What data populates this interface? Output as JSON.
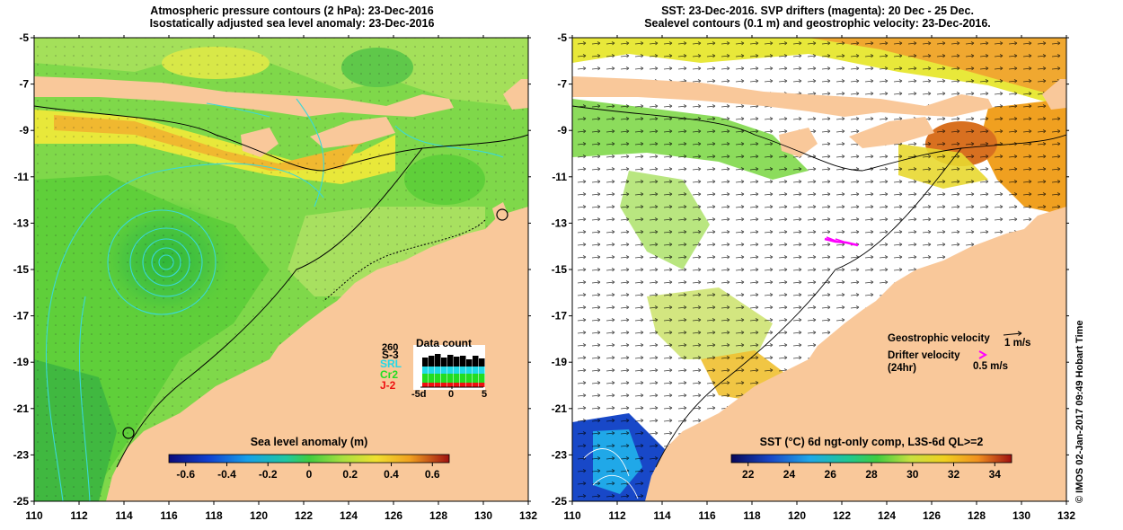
{
  "left_panel": {
    "title_line1": "Atmospheric pressure contours (2 hPa): 23-Dec-2016",
    "title_line2": "Isostatically adjusted sea level anomaly: 23-Dec-2016",
    "colorbar": {
      "label": "Sea level anomaly (m)",
      "ticks": [
        "-0.6",
        "-0.4",
        "-0.2",
        "0",
        "0.2",
        "0.4",
        "0.6"
      ]
    },
    "data_count": {
      "title": "Data count",
      "max_label": "260",
      "missions": [
        {
          "name": "S-3",
          "color": "#000000"
        },
        {
          "name": "SRL",
          "color": "#22d8e8"
        },
        {
          "name": "Cr2",
          "color": "#22dd22"
        },
        {
          "name": "J-2",
          "color": "#ee1111"
        }
      ],
      "ticks": [
        "-5d",
        "0",
        "5"
      ]
    }
  },
  "right_panel": {
    "title_line1": "SST: 23-Dec-2016. SVP drifters (magenta): 20 Dec - 25 Dec.",
    "title_line2": "Sealevel contours (0.1 m) and geostrophic velocity: 23-Dec-2016.",
    "legend": {
      "geostrophic_label": "Geostrophic velocity",
      "geostrophic_scale": "1 m/s",
      "drifter_label_line1": "Drifter velocity",
      "drifter_label_line2": "(24hr)",
      "drifter_scale": "0.5 m/s"
    },
    "colorbar": {
      "label": "SST (°C) 6d ngt-only comp, L3S-6d QL>=2",
      "ticks": [
        "22",
        "24",
        "26",
        "28",
        "30",
        "32",
        "34"
      ]
    }
  },
  "axes": {
    "lat_ticks": [
      "-5",
      "-7",
      "-9",
      "-11",
      "-13",
      "-15",
      "-17",
      "-19",
      "-21",
      "-23",
      "-25"
    ],
    "lon_ticks": [
      "110",
      "112",
      "114",
      "116",
      "118",
      "120",
      "122",
      "124",
      "126",
      "128",
      "130",
      "132"
    ]
  },
  "credit": "© IMOS 02-Jan-2017 09:49 Hobart Time",
  "colors": {
    "land": "#f9c89a",
    "ocean_green": "#5fcf3a",
    "ocean_light": "#9fe05a",
    "warm_yellow": "#e8e83a",
    "warm_orange": "#f0a020",
    "contour_cyan": "#3ad8d8",
    "drifter": "#ff00ff"
  }
}
